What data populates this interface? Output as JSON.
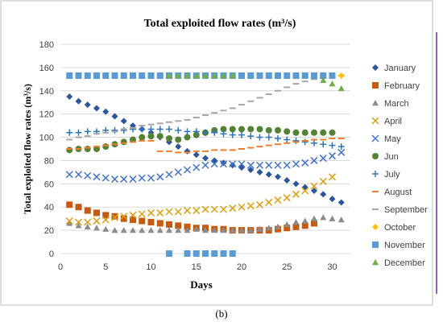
{
  "chart_data": {
    "type": "scatter",
    "title": "Total exploited flow rates (m³/s)",
    "xlabel": "Days",
    "ylabel": "Total exploited  flow rates (m³/s)",
    "xlim": [
      0,
      32
    ],
    "ylim": [
      0,
      180
    ],
    "x_ticks": [
      0,
      5,
      10,
      15,
      20,
      25,
      30
    ],
    "y_ticks": [
      0,
      20,
      40,
      60,
      80,
      100,
      120,
      140,
      160,
      180
    ],
    "grid": "horizontal",
    "legend_position": "right",
    "series": [
      {
        "name": "January",
        "marker": "diamond",
        "color": "#2e5597",
        "x": [
          1,
          2,
          3,
          4,
          5,
          6,
          7,
          8,
          9,
          10,
          11,
          12,
          13,
          14,
          15,
          16,
          17,
          18,
          19,
          20,
          21,
          22,
          23,
          24,
          25,
          26,
          27,
          28,
          29,
          30,
          31
        ],
        "y": [
          135,
          131,
          128,
          125,
          122,
          118,
          114,
          110,
          107,
          104,
          100,
          96,
          92,
          88,
          85,
          82,
          80,
          78,
          76,
          74,
          72,
          70,
          68,
          66,
          63,
          60,
          57,
          54,
          51,
          47,
          44
        ]
      },
      {
        "name": "February",
        "marker": "square",
        "color": "#c55a11",
        "x": [
          1,
          2,
          3,
          4,
          5,
          6,
          7,
          8,
          9,
          10,
          11,
          12,
          13,
          14,
          15,
          16,
          17,
          18,
          19,
          20,
          21,
          22,
          23,
          24,
          25,
          26,
          27,
          28
        ],
        "y": [
          42,
          40,
          37,
          35,
          33,
          32,
          30,
          29,
          28,
          27,
          26,
          25,
          24,
          23,
          22,
          22,
          21,
          21,
          20,
          20,
          20,
          20,
          20,
          21,
          22,
          23,
          24,
          26
        ]
      },
      {
        "name": "March",
        "marker": "triangle",
        "color": "#8c8c8c",
        "x": [
          1,
          2,
          3,
          4,
          5,
          6,
          7,
          8,
          9,
          10,
          11,
          12,
          13,
          14,
          15,
          16,
          17,
          18,
          19,
          20,
          21,
          22,
          23,
          24,
          25,
          26,
          27,
          28,
          29,
          30,
          31
        ],
        "y": [
          26,
          24,
          23,
          22,
          21,
          20,
          20,
          20,
          20,
          20,
          20,
          20,
          20,
          20,
          21,
          20,
          20,
          20,
          20,
          20,
          20,
          21,
          22,
          23,
          25,
          27,
          28,
          30,
          31,
          30,
          29
        ]
      },
      {
        "name": "April",
        "marker": "x",
        "color": "#d4a017",
        "x": [
          1,
          2,
          3,
          4,
          5,
          6,
          7,
          8,
          9,
          10,
          11,
          12,
          13,
          14,
          15,
          16,
          17,
          18,
          19,
          20,
          21,
          22,
          23,
          24,
          25,
          26,
          27,
          28,
          29,
          30
        ],
        "y": [
          28,
          27,
          27,
          28,
          29,
          31,
          32,
          33,
          34,
          35,
          35,
          36,
          36,
          37,
          37,
          38,
          38,
          38,
          39,
          40,
          41,
          42,
          44,
          46,
          48,
          51,
          54,
          58,
          62,
          66
        ]
      },
      {
        "name": "May",
        "marker": "x",
        "color": "#4472c4",
        "x": [
          1,
          2,
          3,
          4,
          5,
          6,
          7,
          8,
          9,
          10,
          11,
          12,
          13,
          14,
          15,
          16,
          17,
          18,
          19,
          20,
          21,
          22,
          23,
          24,
          25,
          26,
          27,
          28,
          29,
          30,
          31
        ],
        "y": [
          68,
          68,
          67,
          66,
          65,
          64,
          64,
          64,
          65,
          65,
          66,
          68,
          70,
          72,
          74,
          76,
          77,
          77,
          77,
          77,
          76,
          76,
          76,
          76,
          76,
          77,
          78,
          80,
          82,
          84,
          87
        ]
      },
      {
        "name": "Jun",
        "marker": "circle",
        "color": "#548235",
        "x": [
          1,
          2,
          3,
          4,
          5,
          6,
          7,
          8,
          9,
          10,
          11,
          12,
          13,
          14,
          15,
          16,
          17,
          18,
          19,
          20,
          21,
          22,
          23,
          24,
          25,
          26,
          27,
          28,
          29,
          30
        ],
        "y": [
          89,
          90,
          90,
          90,
          92,
          94,
          96,
          98,
          100,
          101,
          101,
          99,
          98,
          100,
          102,
          104,
          106,
          107,
          107,
          107,
          107,
          107,
          106,
          106,
          105,
          104,
          104,
          104,
          104,
          104
        ]
      },
      {
        "name": "July",
        "marker": "plus",
        "color": "#2e75b6",
        "x": [
          1,
          2,
          3,
          4,
          5,
          6,
          7,
          8,
          9,
          10,
          11,
          12,
          13,
          14,
          15,
          16,
          17,
          18,
          19,
          20,
          21,
          22,
          23,
          24,
          25,
          26,
          27,
          28,
          29,
          30,
          31
        ],
        "y": [
          104,
          104,
          105,
          105,
          106,
          106,
          106,
          107,
          107,
          107,
          107,
          107,
          106,
          105,
          105,
          104,
          104,
          103,
          102,
          102,
          101,
          100,
          100,
          99,
          98,
          97,
          96,
          95,
          94,
          93,
          92
        ]
      },
      {
        "name": "August",
        "marker": "dash",
        "color": "#ed7d31",
        "x": [
          1,
          2,
          3,
          4,
          5,
          6,
          7,
          8,
          9,
          10,
          11,
          12,
          13,
          14,
          15,
          16,
          17,
          18,
          19,
          20,
          21,
          22,
          23,
          24,
          25,
          26,
          27,
          28,
          29,
          30,
          31
        ],
        "y": [
          90,
          90,
          91,
          92,
          93,
          94,
          95,
          96,
          97,
          97,
          88,
          88,
          87,
          87,
          88,
          88,
          89,
          89,
          89,
          90,
          91,
          92,
          93,
          94,
          95,
          96,
          97,
          98,
          98,
          99,
          99
        ]
      },
      {
        "name": "September",
        "marker": "dash",
        "color": "#a6a6a6",
        "x": [
          1,
          2,
          3,
          4,
          5,
          6,
          7,
          8,
          9,
          10,
          11,
          12,
          13,
          14,
          15,
          16,
          17,
          18,
          19,
          20,
          21,
          22,
          23,
          24,
          25,
          26,
          27,
          28,
          29,
          30,
          31
        ],
        "y": [
          98,
          100,
          101,
          103,
          104,
          105,
          107,
          108,
          110,
          111,
          112,
          113,
          114,
          115,
          117,
          119,
          121,
          123,
          125,
          128,
          131,
          134,
          137,
          140,
          143,
          146,
          148,
          150,
          151,
          152,
          153
        ]
      },
      {
        "name": "October",
        "marker": "diamond",
        "color": "#ffc000",
        "x": [
          1,
          2,
          3,
          4,
          5,
          6,
          7,
          8,
          9,
          10,
          11,
          12,
          13,
          14,
          15,
          16,
          17,
          18,
          19,
          20,
          21,
          22,
          23,
          24,
          25,
          26,
          27,
          28,
          29,
          30,
          31
        ],
        "y": [
          153,
          153,
          153,
          153,
          153,
          153,
          153,
          153,
          153,
          153,
          153,
          153,
          153,
          153,
          153,
          153,
          153,
          153,
          153,
          153,
          153,
          153,
          153,
          153,
          153,
          153,
          153,
          153,
          153,
          153,
          153
        ]
      },
      {
        "name": "November",
        "marker": "square",
        "color": "#5b9bd5",
        "x": [
          1,
          2,
          3,
          4,
          5,
          6,
          7,
          8,
          9,
          10,
          11,
          12,
          13,
          14,
          15,
          16,
          17,
          18,
          19,
          20,
          21,
          22,
          23,
          24,
          25,
          26,
          27,
          28,
          29,
          30,
          12,
          14,
          15,
          16,
          17,
          18,
          19
        ],
        "y": [
          153,
          153,
          153,
          153,
          153,
          153,
          153,
          153,
          153,
          153,
          153,
          153,
          153,
          153,
          153,
          153,
          153,
          153,
          153,
          153,
          153,
          153,
          153,
          153,
          153,
          153,
          153,
          153,
          153,
          153,
          0,
          0,
          0,
          0,
          0,
          0,
          0
        ]
      },
      {
        "name": "December",
        "marker": "triangle",
        "color": "#70ad47",
        "x": [
          12,
          13,
          14,
          15,
          16,
          17,
          18,
          19,
          29,
          30,
          31
        ],
        "y": [
          153,
          153,
          153,
          153,
          153,
          153,
          153,
          153,
          149,
          146,
          142
        ]
      }
    ]
  },
  "caption": "(b)"
}
